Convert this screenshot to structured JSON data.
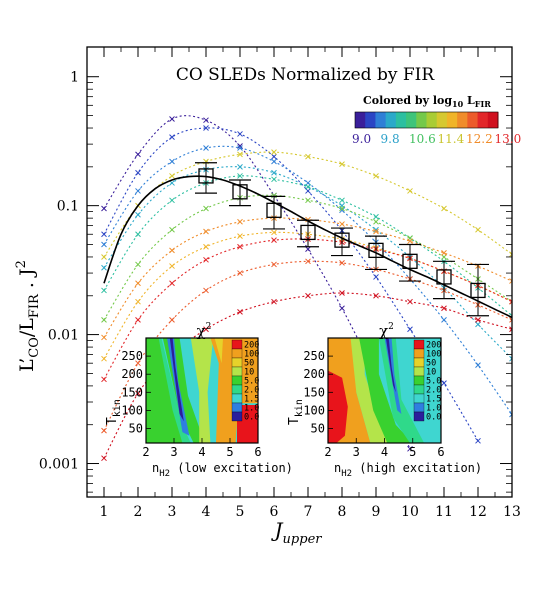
{
  "chart_data": {
    "type": "line",
    "title": "CO SLEDs Normalized by FIR",
    "xlabel": "J",
    "xlabel_sub": "upper",
    "ylabel_parts": {
      "a": "L",
      "b": "’",
      "c": "CO",
      "d": "/L",
      "e": "FIR",
      "f": " . J",
      "g": "2"
    },
    "log_y": true,
    "xlim": [
      0.5,
      13
    ],
    "ylim": [
      0.00055,
      1.7
    ],
    "x_ticks": [
      1,
      2,
      3,
      4,
      5,
      6,
      7,
      8,
      9,
      10,
      11,
      12,
      13
    ],
    "y_ticks": [
      {
        "value": 0.001,
        "label": "0.001"
      },
      {
        "value": 0.01,
        "label": "0.01"
      },
      {
        "value": 0.1,
        "label": "0.1"
      },
      {
        "value": 1,
        "label": "1"
      }
    ],
    "colorbar": {
      "title_prefix": "Colored by log",
      "title_sub": "10",
      "title_L": " L",
      "title_fir": "FIR",
      "colors": [
        "#3a1f9a",
        "#2b45c4",
        "#2f7fd6",
        "#2ba9c9",
        "#2dbfa0",
        "#3ec47a",
        "#74c94a",
        "#a9cc35",
        "#d6c830",
        "#f0b429",
        "#f08c2a",
        "#ec5b2b",
        "#e2272a",
        "#d0101f"
      ],
      "labels": [
        {
          "text": "9.0",
          "color": "#3a1f9a"
        },
        {
          "text": "9.8",
          "color": "#2aa0c9"
        },
        {
          "text": "10.6",
          "color": "#42c060"
        },
        {
          "text": "11.4",
          "color": "#c9c42e"
        },
        {
          "text": "12.2",
          "color": "#f08c2a"
        },
        {
          "text": "13.0",
          "color": "#e2272a"
        }
      ]
    },
    "series": [
      {
        "color": "#3a1f9a",
        "values": [
          0.095,
          0.25,
          0.47,
          0.46,
          0.29,
          0.12,
          0.046,
          0.016,
          0.0048,
          0.0013
        ]
      },
      {
        "color": "#2b45c4",
        "values": [
          0.06,
          0.18,
          0.34,
          0.4,
          0.36,
          0.24,
          0.13,
          0.064,
          0.028,
          0.011,
          0.0042,
          0.0015
        ]
      },
      {
        "color": "#2f7fd6",
        "values": [
          0.05,
          0.13,
          0.22,
          0.28,
          0.28,
          0.22,
          0.15,
          0.092,
          0.052,
          0.027,
          0.013,
          0.0058,
          0.0024
        ]
      },
      {
        "color": "#2ba9c9",
        "values": [
          0.033,
          0.085,
          0.15,
          0.19,
          0.2,
          0.18,
          0.14,
          0.1,
          0.065,
          0.04,
          0.023,
          0.012,
          0.0065
        ]
      },
      {
        "color": "#2dbfa0",
        "values": [
          0.022,
          0.06,
          0.11,
          0.15,
          0.17,
          0.16,
          0.14,
          0.11,
          0.082,
          0.056,
          0.037,
          0.023,
          0.014
        ]
      },
      {
        "color": "#74c94a",
        "values": [
          0.013,
          0.035,
          0.065,
          0.095,
          0.115,
          0.12,
          0.11,
          0.095,
          0.075,
          0.056,
          0.04,
          0.027,
          0.018
        ]
      },
      {
        "color": "#d6c830",
        "values": [
          0.04,
          0.1,
          0.17,
          0.22,
          0.25,
          0.26,
          0.24,
          0.21,
          0.17,
          0.13,
          0.095,
          0.065,
          0.042
        ]
      },
      {
        "color": "#f0b429",
        "values": [
          0.0065,
          0.018,
          0.034,
          0.048,
          0.058,
          0.062,
          0.06,
          0.055,
          0.047,
          0.039,
          0.031,
          0.024,
          0.018
        ]
      },
      {
        "color": "#f08c2a",
        "values": [
          0.0095,
          0.025,
          0.045,
          0.063,
          0.075,
          0.08,
          0.078,
          0.072,
          0.063,
          0.053,
          0.043,
          0.034,
          0.026
        ]
      },
      {
        "color": "#ec5b2b",
        "values": [
          0.0018,
          0.006,
          0.013,
          0.022,
          0.03,
          0.035,
          0.037,
          0.036,
          0.032,
          0.027,
          0.022,
          0.017,
          0.013
        ]
      },
      {
        "color": "#e2272a",
        "values": [
          0.0045,
          0.013,
          0.025,
          0.038,
          0.048,
          0.054,
          0.055,
          0.052,
          0.046,
          0.039,
          0.031,
          0.024,
          0.018
        ]
      },
      {
        "color": "#d0101f",
        "values": [
          0.0011,
          0.0035,
          0.007,
          0.011,
          0.015,
          0.018,
          0.02,
          0.021,
          0.02,
          0.018,
          0.016,
          0.013,
          0.011
        ]
      }
    ],
    "mean_points": [
      {
        "x": 4,
        "y": 0.17,
        "lo": 0.125,
        "hi": 0.215
      },
      {
        "x": 5,
        "y": 0.128,
        "lo": 0.1,
        "hi": 0.158
      },
      {
        "x": 6,
        "y": 0.092,
        "lo": 0.066,
        "hi": 0.118
      },
      {
        "x": 7,
        "y": 0.062,
        "lo": 0.048,
        "hi": 0.077
      },
      {
        "x": 8,
        "y": 0.054,
        "lo": 0.041,
        "hi": 0.067
      },
      {
        "x": 9,
        "y": 0.045,
        "lo": 0.032,
        "hi": 0.058
      },
      {
        "x": 10,
        "y": 0.037,
        "lo": 0.026,
        "hi": 0.05
      },
      {
        "x": 11,
        "y": 0.028,
        "lo": 0.019,
        "hi": 0.037
      },
      {
        "x": 12,
        "y": 0.022,
        "lo": 0.014,
        "hi": 0.035
      }
    ],
    "model_curve": [
      [
        1,
        0.025
      ],
      [
        1.5,
        0.06
      ],
      [
        2,
        0.1
      ],
      [
        2.5,
        0.135
      ],
      [
        3,
        0.158
      ],
      [
        3.5,
        0.168
      ],
      [
        4,
        0.168
      ],
      [
        4.5,
        0.158
      ],
      [
        5,
        0.142
      ],
      [
        5.5,
        0.124
      ],
      [
        6,
        0.106
      ],
      [
        6.5,
        0.09
      ],
      [
        7,
        0.076
      ],
      [
        7.5,
        0.065
      ],
      [
        8,
        0.056
      ],
      [
        8.5,
        0.049
      ],
      [
        9,
        0.043
      ],
      [
        9.5,
        0.037
      ],
      [
        10,
        0.032
      ],
      [
        10.5,
        0.028
      ],
      [
        11,
        0.0243
      ],
      [
        11.5,
        0.021
      ],
      [
        12,
        0.0182
      ],
      [
        12.5,
        0.0157
      ],
      [
        13,
        0.0136
      ]
    ],
    "insets": [
      {
        "label": "low excitation",
        "title": "χ",
        "title_sup": "2",
        "xlabel": "n",
        "xlabel_sub": "H2",
        "ylabel": "T",
        "ylabel_sub": "kin",
        "x_ticks": [
          2,
          3,
          4,
          5,
          6
        ],
        "y_ticks": [
          50,
          100,
          150,
          200,
          250
        ]
      },
      {
        "label": "high excitation",
        "title": "χ",
        "title_sup": "2",
        "xlabel": "n",
        "xlabel_sub": "H2",
        "ylabel": "T",
        "ylabel_sub": "kin",
        "x_ticks": [
          2,
          3,
          4,
          5,
          6
        ],
        "y_ticks": [
          50,
          100,
          150,
          200,
          250
        ]
      }
    ],
    "chi2_scale": {
      "labels": [
        "200",
        "100",
        "50",
        "10",
        "5.0",
        "2.0",
        "1.5",
        "1.0",
        "0.0"
      ],
      "colors": [
        "#e8141b",
        "#f0a01e",
        "#e7d22a",
        "#b4e44a",
        "#39d12f",
        "#2fd98a",
        "#3fd6d0",
        "#2f7fe0",
        "#2b1e9c"
      ]
    }
  }
}
